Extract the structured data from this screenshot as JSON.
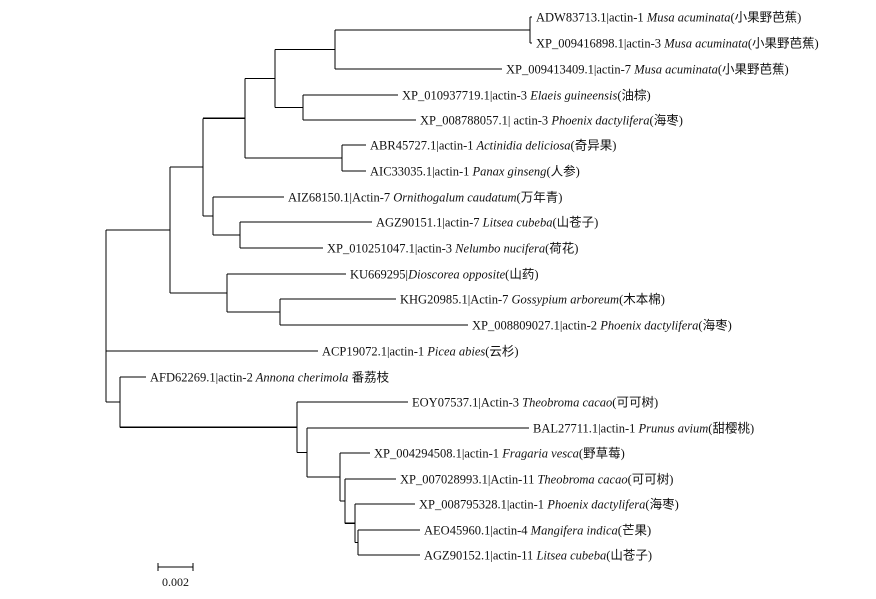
{
  "tree": {
    "leaves": [
      {
        "accession": "ADW83713.1|actin-1",
        "species": "Musa acuminata",
        "common": "(小果野芭蕉)"
      },
      {
        "accession": "XP_009416898.1|actin-3",
        "species": "Musa acuminata",
        "common": "(小果野芭蕉)"
      },
      {
        "accession": "XP_009413409.1|actin-7",
        "species": "Musa acuminata",
        "common": "(小果野芭蕉)"
      },
      {
        "accession": "XP_010937719.1|actin-3",
        "species": "Elaeis guineensis",
        "common": "(油棕)"
      },
      {
        "accession": "XP_008788057.1| actin-3",
        "species": "Phoenix dactylifera",
        "common": "(海枣)"
      },
      {
        "accession": "ABR45727.1|actin-1",
        "species": "Actinidia deliciosa",
        "common": "(奇异果)"
      },
      {
        "accession": "AIC33035.1|actin-1",
        "species": "Panax ginseng",
        "common": "(人参)"
      },
      {
        "accession": "AIZ68150.1|Actin-7",
        "species": "Ornithogalum caudatum",
        "common": "(万年青)"
      },
      {
        "accession": "AGZ90151.1|actin-7",
        "species": "Litsea cubeba",
        "common": "(山苍子)"
      },
      {
        "accession": "XP_010251047.1|actin-3",
        "species": "Nelumbo nucifera",
        "common": "(荷花)"
      },
      {
        "accession": "KU669295|",
        "species": "Dioscorea opposite",
        "common": "(山药)"
      },
      {
        "accession": "KHG20985.1|Actin-7",
        "species": "Gossypium arboreum",
        "common": "(木本棉)"
      },
      {
        "accession": "XP_008809027.1|actin-2",
        "species": "Phoenix dactylifera",
        "common": "(海枣)"
      },
      {
        "accession": "ACP19072.1|actin-1",
        "species": "Picea abies",
        "common": "(云杉)"
      },
      {
        "accession": "AFD62269.1|actin-2",
        "species": "Annona cherimola",
        "common": "番荔枝"
      },
      {
        "accession": "EOY07537.1|Actin-3",
        "species": "Theobroma cacao",
        "common": "(可可树)"
      },
      {
        "accession": "BAL27711.1|actin-1",
        "species": "Prunus avium",
        "common": "(甜樱桃)"
      },
      {
        "accession": "XP_004294508.1|actin-1",
        "species": "Fragaria vesca",
        "common": "(野草莓)"
      },
      {
        "accession": "XP_007028993.1|Actin-11",
        "species": "Theobroma cacao",
        "common": "(可可树)"
      },
      {
        "accession": "XP_008795328.1|actin-1",
        "species": "Phoenix dactylifera",
        "common": "(海枣)"
      },
      {
        "accession": "AEO45960.1|actin-4",
        "species": "Mangifera indica",
        "common": "(芒果)"
      },
      {
        "accession": "AGZ90152.1|actin-11",
        "species": "Litsea cubeba",
        "common": "(山苍子)"
      }
    ],
    "scale_bar": {
      "label": "0.002"
    }
  }
}
